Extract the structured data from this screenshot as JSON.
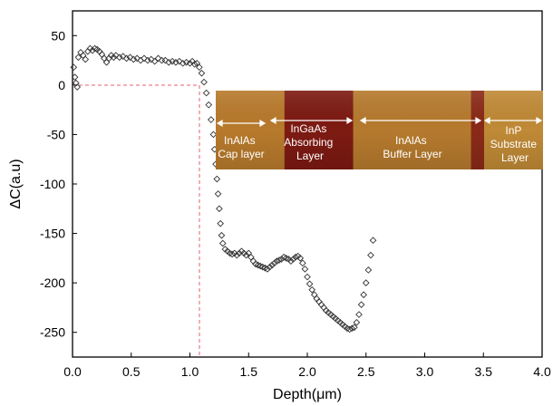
{
  "chart_data": {
    "type": "scatter",
    "xlabel": "Depth(μm)",
    "ylabel": "ΔC(a.u)",
    "xlim": [
      0.0,
      4.0
    ],
    "ylim": [
      -275,
      75
    ],
    "xticks": [
      "0.0",
      "0.5",
      "1.0",
      "1.5",
      "2.0",
      "2.5",
      "3.0",
      "3.5",
      "4.0"
    ],
    "yticks": [
      "50",
      "0",
      "-50",
      "-100",
      "-150",
      "-200",
      "-250"
    ],
    "marker": "diamond-open",
    "marker_color": "#333333",
    "reference_line": {
      "x": 1.08,
      "y": 0,
      "style": "dashed",
      "color": "#e06070"
    },
    "points": [
      [
        0.01,
        18
      ],
      [
        0.02,
        8
      ],
      [
        0.03,
        2
      ],
      [
        0.04,
        -2
      ],
      [
        0.05,
        28
      ],
      [
        0.07,
        33
      ],
      [
        0.09,
        30
      ],
      [
        0.11,
        26
      ],
      [
        0.13,
        34
      ],
      [
        0.15,
        37
      ],
      [
        0.17,
        35
      ],
      [
        0.19,
        37
      ],
      [
        0.21,
        36
      ],
      [
        0.23,
        34
      ],
      [
        0.25,
        31
      ],
      [
        0.27,
        27
      ],
      [
        0.29,
        23
      ],
      [
        0.31,
        27
      ],
      [
        0.33,
        30
      ],
      [
        0.35,
        28
      ],
      [
        0.37,
        30
      ],
      [
        0.4,
        28
      ],
      [
        0.43,
        29
      ],
      [
        0.46,
        27
      ],
      [
        0.49,
        28
      ],
      [
        0.52,
        26
      ],
      [
        0.55,
        27
      ],
      [
        0.58,
        25
      ],
      [
        0.61,
        27
      ],
      [
        0.64,
        25
      ],
      [
        0.67,
        26
      ],
      [
        0.7,
        24
      ],
      [
        0.73,
        27
      ],
      [
        0.76,
        25
      ],
      [
        0.79,
        25
      ],
      [
        0.82,
        23
      ],
      [
        0.85,
        24
      ],
      [
        0.88,
        23
      ],
      [
        0.91,
        24
      ],
      [
        0.94,
        22
      ],
      [
        0.97,
        23
      ],
      [
        1.0,
        22
      ],
      [
        1.02,
        24
      ],
      [
        1.04,
        21
      ],
      [
        1.06,
        22
      ],
      [
        1.08,
        18
      ],
      [
        1.1,
        12
      ],
      [
        1.12,
        3
      ],
      [
        1.14,
        -8
      ],
      [
        1.16,
        -20
      ],
      [
        1.18,
        -35
      ],
      [
        1.2,
        -50
      ],
      [
        1.21,
        -65
      ],
      [
        1.22,
        -80
      ],
      [
        1.23,
        -95
      ],
      [
        1.24,
        -110
      ],
      [
        1.25,
        -125
      ],
      [
        1.26,
        -140
      ],
      [
        1.27,
        -152
      ],
      [
        1.28,
        -160
      ],
      [
        1.3,
        -166
      ],
      [
        1.32,
        -168
      ],
      [
        1.34,
        -170
      ],
      [
        1.36,
        -171
      ],
      [
        1.38,
        -170
      ],
      [
        1.4,
        -172
      ],
      [
        1.42,
        -170
      ],
      [
        1.44,
        -168
      ],
      [
        1.46,
        -170
      ],
      [
        1.48,
        -172
      ],
      [
        1.5,
        -170
      ],
      [
        1.52,
        -174
      ],
      [
        1.54,
        -178
      ],
      [
        1.56,
        -181
      ],
      [
        1.58,
        -182
      ],
      [
        1.6,
        -183
      ],
      [
        1.62,
        -184
      ],
      [
        1.64,
        -185
      ],
      [
        1.66,
        -186
      ],
      [
        1.68,
        -184
      ],
      [
        1.7,
        -182
      ],
      [
        1.72,
        -180
      ],
      [
        1.74,
        -178
      ],
      [
        1.76,
        -177
      ],
      [
        1.78,
        -176
      ],
      [
        1.8,
        -174
      ],
      [
        1.82,
        -175
      ],
      [
        1.84,
        -176
      ],
      [
        1.86,
        -178
      ],
      [
        1.88,
        -176
      ],
      [
        1.9,
        -174
      ],
      [
        1.92,
        -173
      ],
      [
        1.94,
        -175
      ],
      [
        1.96,
        -180
      ],
      [
        1.98,
        -186
      ],
      [
        2.0,
        -194
      ],
      [
        2.02,
        -201
      ],
      [
        2.04,
        -207
      ],
      [
        2.06,
        -212
      ],
      [
        2.08,
        -216
      ],
      [
        2.1,
        -219
      ],
      [
        2.12,
        -222
      ],
      [
        2.14,
        -225
      ],
      [
        2.16,
        -228
      ],
      [
        2.18,
        -230
      ],
      [
        2.2,
        -232
      ],
      [
        2.22,
        -234
      ],
      [
        2.24,
        -236
      ],
      [
        2.26,
        -238
      ],
      [
        2.28,
        -240
      ],
      [
        2.3,
        -242
      ],
      [
        2.32,
        -244
      ],
      [
        2.34,
        -246
      ],
      [
        2.36,
        -247
      ],
      [
        2.38,
        -246
      ],
      [
        2.4,
        -245
      ],
      [
        2.42,
        -240
      ],
      [
        2.44,
        -232
      ],
      [
        2.46,
        -222
      ],
      [
        2.48,
        -212
      ],
      [
        2.5,
        -200
      ],
      [
        2.52,
        -187
      ],
      [
        2.54,
        -172
      ],
      [
        2.56,
        -157
      ]
    ],
    "inset_image": {
      "bands": [
        {
          "label": "InAlAs Cap layer",
          "from": 0,
          "to": 0.21,
          "color": "#b87a2c"
        },
        {
          "label": "InGaAs Absorbing Layer",
          "from": 0.21,
          "to": 0.42,
          "color": "#7d1a12"
        },
        {
          "label": "InAlAs Buffer Layer",
          "from": 0.42,
          "to": 0.78,
          "color": "#b67a2e"
        },
        {
          "label": "",
          "from": 0.78,
          "to": 0.82,
          "color": "#8a2a18"
        },
        {
          "label": "InP Substrate Layer",
          "from": 0.82,
          "to": 1.0,
          "color": "#c08a36"
        }
      ]
    }
  },
  "inset_labels": [
    [
      "InAlAs",
      "Cap layer"
    ],
    [
      "InGaAs",
      "Absorbing",
      "Layer"
    ],
    [
      "InAlAs",
      "Buffer Layer"
    ],
    [
      "InP",
      "Substrate",
      "Layer"
    ]
  ]
}
